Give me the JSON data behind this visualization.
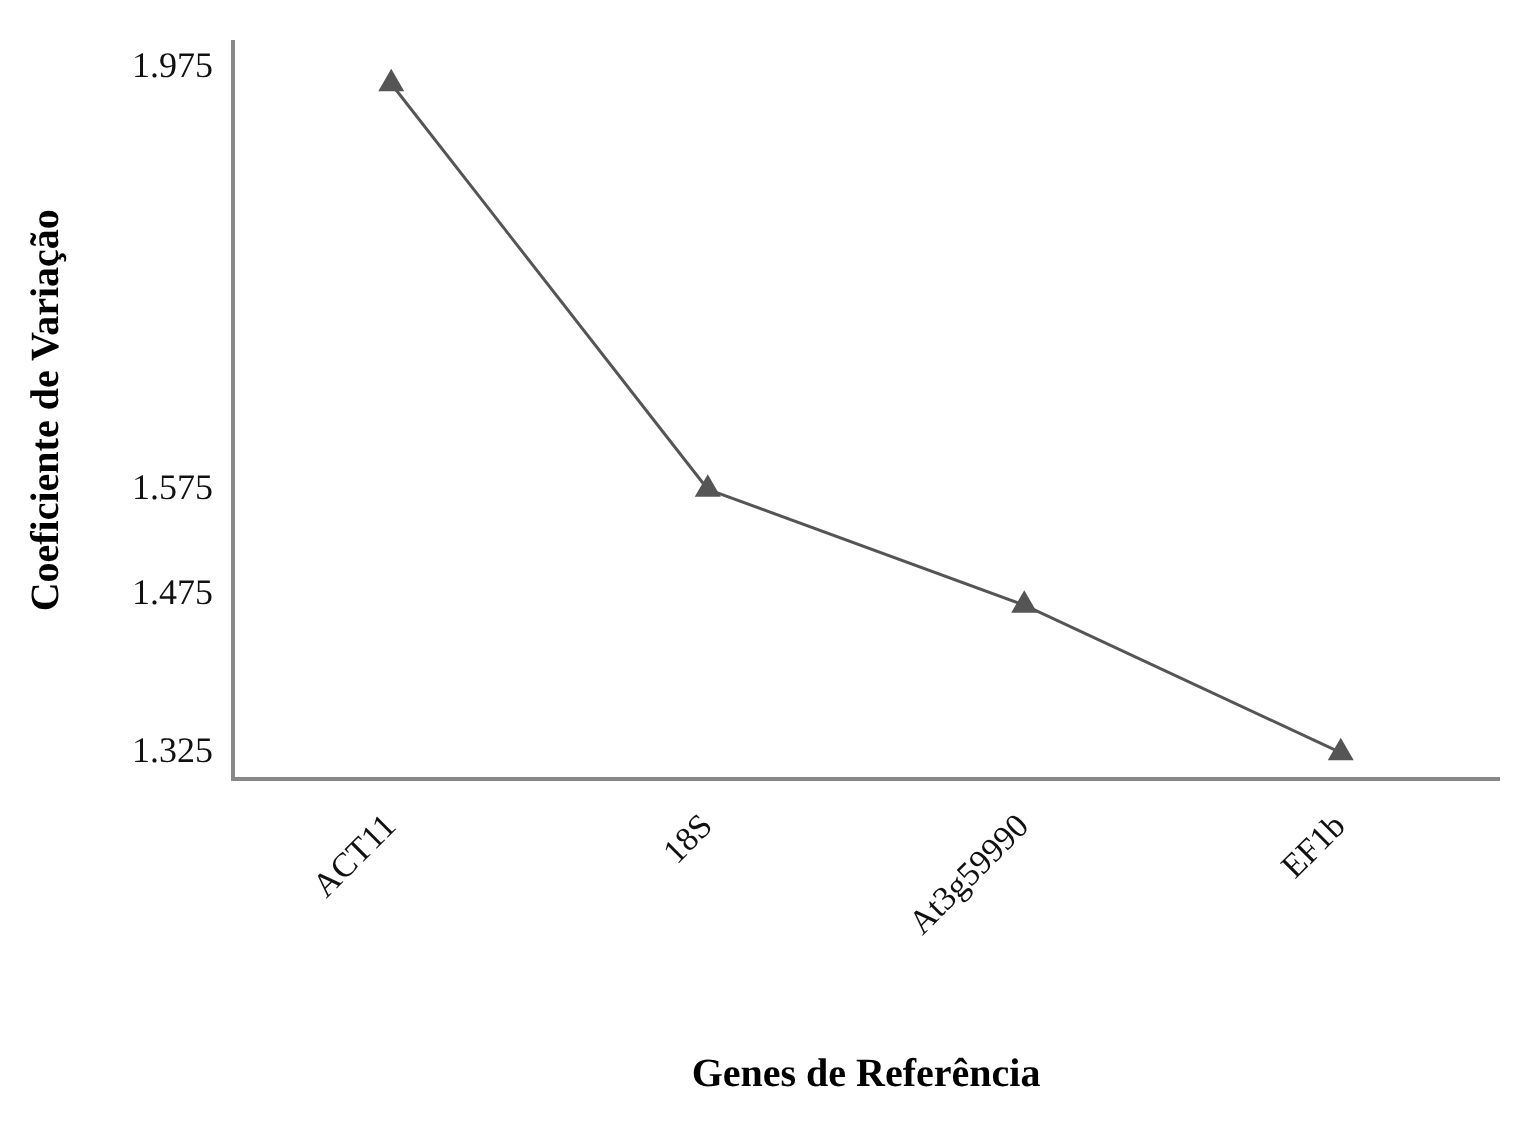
{
  "chart_data": {
    "type": "line",
    "xlabel": "Genes de Referência",
    "ylabel": "Coeficiente de Variação",
    "categories": [
      "ACT11",
      "18S",
      "At3g59990",
      "EF1b"
    ],
    "series": [
      {
        "color": "#555555",
        "values": [
          1.96,
          1.575,
          1.465,
          1.325
        ]
      }
    ],
    "ylim": [
      1.3,
      2.0
    ],
    "yticks": [
      1.325,
      1.475,
      1.575,
      1.975
    ],
    "marker": "triangle",
    "line_style": "solid",
    "grid": false,
    "legend": false
  }
}
